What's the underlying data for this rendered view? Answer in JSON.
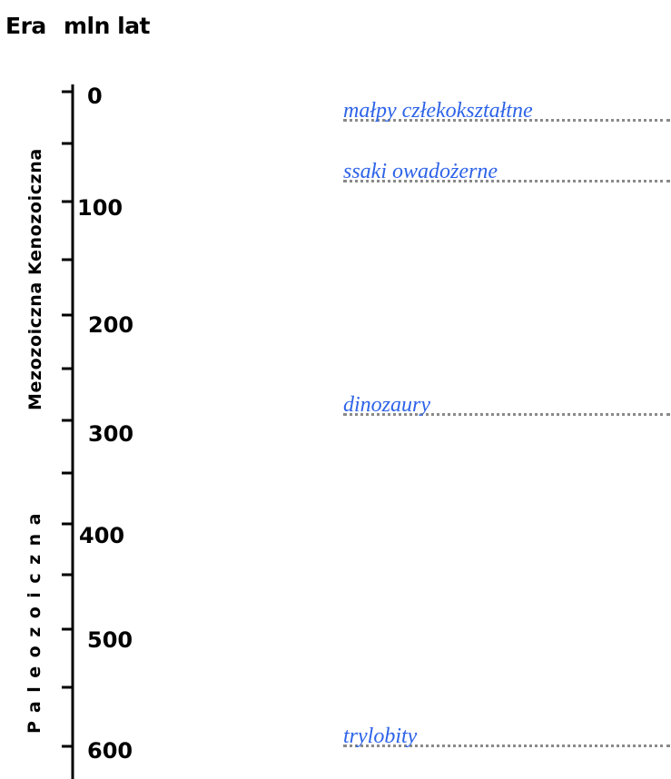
{
  "header": {
    "era": "Era",
    "mln_lat": "mln lat"
  },
  "eras": {
    "mezo_keno": "Mezozoiczna Kenozoiczna",
    "paleo": "Paleozoiczna"
  },
  "axis": {
    "ticks": [
      "0",
      "100",
      "200",
      "300",
      "400",
      "500",
      "600"
    ]
  },
  "annotations": [
    {
      "label": "małpy człekokształtne"
    },
    {
      "label": "ssaki owadożerne"
    },
    {
      "label": "dinozaury"
    },
    {
      "label": "trylobity"
    }
  ]
}
